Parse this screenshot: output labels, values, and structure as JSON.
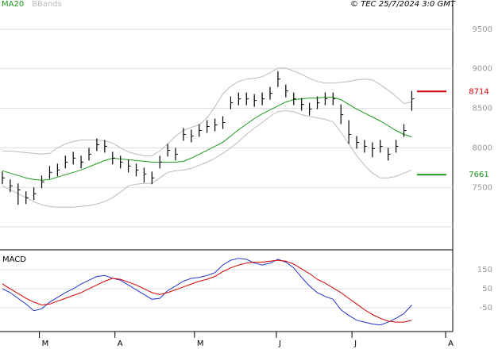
{
  "chart_data": [
    {
      "type": "ohlc",
      "source": "© TEC 25/7/2024 3:0 GMT",
      "xlim": [
        -0.3,
        57.2
      ],
      "ylim": [
        6710,
        9770
      ],
      "yticks": [
        7500,
        8000,
        8500,
        9000,
        9500
      ],
      "grid": true,
      "color": "#000000",
      "close": [
        7620,
        7520,
        7470,
        7370,
        7420,
        7570,
        7690,
        7720,
        7820,
        7870,
        7820,
        7920,
        8040,
        8020,
        7870,
        7820,
        7770,
        7720,
        7670,
        7620,
        7820,
        7970,
        7920,
        8170,
        8150,
        8220,
        8270,
        8290,
        8320,
        8570,
        8620,
        8620,
        8600,
        8620,
        8690,
        8870,
        8720,
        8620,
        8550,
        8490,
        8570,
        8620,
        8620,
        8420,
        8170,
        8070,
        8020,
        7990,
        8020,
        7920,
        8020,
        8220,
        8620
      ],
      "high": [
        7700,
        7600,
        7550,
        7450,
        7500,
        7650,
        7770,
        7800,
        7900,
        7950,
        7900,
        8000,
        8120,
        8100,
        7950,
        7900,
        7850,
        7800,
        7750,
        7700,
        7900,
        8050,
        8000,
        8250,
        8230,
        8300,
        8350,
        8370,
        8400,
        8650,
        8700,
        8700,
        8680,
        8700,
        8770,
        8970,
        8800,
        8700,
        8630,
        8570,
        8650,
        8700,
        8700,
        8550,
        8350,
        8150,
        8100,
        8070,
        8100,
        8000,
        8100,
        8300,
        8720
      ],
      "low": [
        7540,
        7440,
        7280,
        7290,
        7340,
        7490,
        7610,
        7640,
        7740,
        7790,
        7740,
        7840,
        7960,
        7940,
        7790,
        7740,
        7690,
        7640,
        7560,
        7540,
        7740,
        7890,
        7840,
        8090,
        8070,
        8140,
        8190,
        8210,
        8240,
        8490,
        8540,
        8540,
        8520,
        8540,
        8610,
        8770,
        8640,
        8540,
        8470,
        8410,
        8490,
        8540,
        8540,
        8300,
        8050,
        7990,
        7940,
        7880,
        7940,
        7840,
        7940,
        8140,
        8470
      ],
      "ma": {
        "name": "MA20",
        "color": "#1a9a1a",
        "values": [
          7710,
          7680,
          7650,
          7620,
          7600,
          7590,
          7600,
          7630,
          7660,
          7690,
          7720,
          7760,
          7800,
          7840,
          7870,
          7860,
          7850,
          7840,
          7830,
          7820,
          7820,
          7820,
          7820,
          7830,
          7870,
          7920,
          7970,
          8020,
          8070,
          8150,
          8230,
          8300,
          8370,
          8430,
          8480,
          8530,
          8580,
          8610,
          8620,
          8630,
          8630,
          8640,
          8640,
          8610,
          8550,
          8490,
          8440,
          8390,
          8340,
          8280,
          8220,
          8170,
          8140
        ]
      },
      "bands": {
        "name": "BBands",
        "color": "#bbbbbb",
        "upper": [
          7960,
          7960,
          7950,
          7940,
          7930,
          7920,
          7930,
          8000,
          8050,
          8080,
          8100,
          8100,
          8100,
          8090,
          8060,
          8000,
          7950,
          7920,
          7900,
          7900,
          7960,
          8050,
          8150,
          8220,
          8260,
          8290,
          8380,
          8520,
          8680,
          8780,
          8840,
          8870,
          8880,
          8900,
          8950,
          9010,
          9010,
          8970,
          8930,
          8880,
          8840,
          8820,
          8820,
          8830,
          8840,
          8860,
          8870,
          8860,
          8800,
          8730,
          8650,
          8560,
          8580
        ],
        "lower": [
          7520,
          7470,
          7420,
          7370,
          7320,
          7280,
          7260,
          7250,
          7250,
          7250,
          7260,
          7270,
          7290,
          7320,
          7370,
          7440,
          7520,
          7540,
          7550,
          7550,
          7620,
          7690,
          7710,
          7720,
          7740,
          7780,
          7820,
          7870,
          7930,
          8000,
          8080,
          8170,
          8250,
          8320,
          8400,
          8460,
          8470,
          8460,
          8420,
          8400,
          8380,
          8360,
          8330,
          8200,
          8050,
          7900,
          7780,
          7680,
          7620,
          7620,
          7640,
          7680,
          7720
        ]
      },
      "levels": [
        {
          "value": 8714,
          "color": "#d40000"
        },
        {
          "value": 7661,
          "color": "#1a9a1a"
        }
      ]
    },
    {
      "type": "line",
      "title": "MACD",
      "xlim": [
        -0.3,
        57.2
      ],
      "ylim": [
        -162,
        242
      ],
      "yticks": [
        150,
        50,
        -50
      ],
      "xticks": [
        {
          "value": 4.7,
          "label": "M"
        },
        {
          "value": 14.3,
          "label": "A"
        },
        {
          "value": 24.4,
          "label": "M"
        },
        {
          "value": 34.8,
          "label": "J"
        },
        {
          "value": 44.4,
          "label": "J"
        },
        {
          "value": 56.3,
          "label": "A"
        }
      ],
      "series": [
        {
          "color": "#2233cc",
          "values": [
            50,
            30,
            0,
            -30,
            -65,
            -55,
            -20,
            5,
            30,
            50,
            75,
            95,
            115,
            120,
            105,
            95,
            70,
            45,
            20,
            -5,
            0,
            40,
            65,
            90,
            105,
            110,
            120,
            135,
            175,
            200,
            210,
            205,
            185,
            175,
            185,
            205,
            190,
            160,
            110,
            65,
            30,
            10,
            -5,
            -60,
            -90,
            -115,
            -125,
            -135,
            -140,
            -125,
            -105,
            -80,
            -35
          ]
        },
        {
          "color": "#d40000",
          "values": [
            75,
            50,
            25,
            0,
            -20,
            -35,
            -30,
            -15,
            0,
            15,
            30,
            50,
            70,
            90,
            105,
            100,
            85,
            70,
            50,
            30,
            20,
            30,
            45,
            60,
            75,
            90,
            100,
            115,
            140,
            160,
            175,
            185,
            190,
            190,
            195,
            200,
            195,
            180,
            155,
            130,
            100,
            80,
            55,
            30,
            0,
            -30,
            -60,
            -85,
            -105,
            -120,
            -125,
            -125,
            -115
          ]
        }
      ]
    }
  ]
}
